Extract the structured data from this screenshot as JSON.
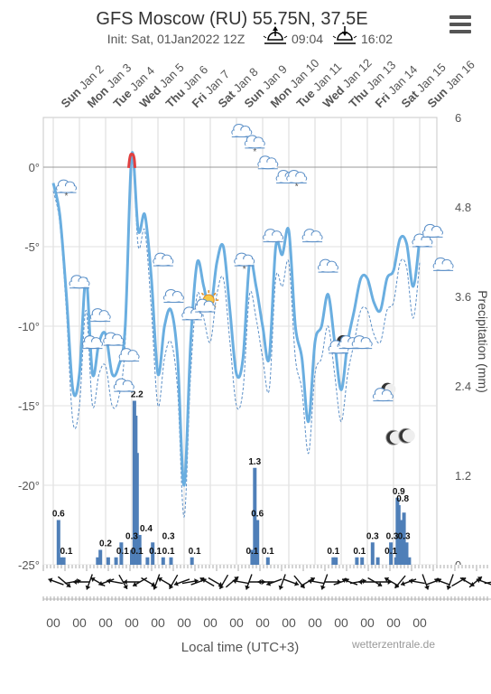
{
  "title": "GFS Moscow (RU) 55.75N, 37.5E",
  "init": "Init: Sat, 01Jan2022 12Z",
  "sunrise": "09:04",
  "sunset": "16:02",
  "menu_icon": "hamburger-menu-icon",
  "source": "wetterzentrale.de",
  "chart_data": {
    "type": "line+bar",
    "xlabel": "Local time (UTC+3)",
    "y2label": "Precipitation (mm)",
    "temp_ticks": [
      "0°",
      "-5°",
      "-10°",
      "-15°",
      "-20°",
      "-25°"
    ],
    "temp_tick_values": [
      0,
      -5,
      -10,
      -15,
      -20,
      -25
    ],
    "temp_ylim": [
      -25,
      3
    ],
    "precip_ticks": [
      "6",
      "4.8",
      "3.6",
      "2.4",
      "1.2",
      "0"
    ],
    "precip_tick_values": [
      6,
      4.8,
      3.6,
      2.4,
      1.2,
      0
    ],
    "precip_ylim": [
      0,
      6
    ],
    "days": [
      {
        "dow": "Sun",
        "date": "Jan 2"
      },
      {
        "dow": "Mon",
        "date": "Jan 3"
      },
      {
        "dow": "Tue",
        "date": "Jan 4"
      },
      {
        "dow": "Wed",
        "date": "Jan 5"
      },
      {
        "dow": "Thu",
        "date": "Jan 6"
      },
      {
        "dow": "Fri",
        "date": "Jan 7"
      },
      {
        "dow": "Sat",
        "date": "Jan 8"
      },
      {
        "dow": "Sun",
        "date": "Jan 9"
      },
      {
        "dow": "Mon",
        "date": "Jan 10"
      },
      {
        "dow": "Tue",
        "date": "Jan 11"
      },
      {
        "dow": "Wed",
        "date": "Jan 12"
      },
      {
        "dow": "Thu",
        "date": "Jan 13"
      },
      {
        "dow": "Fri",
        "date": "Jan 14"
      },
      {
        "dow": "Sat",
        "date": "Jan 15"
      },
      {
        "dow": "Sun",
        "date": "Jan 16"
      }
    ],
    "x_tick_labels": [
      "00",
      "00",
      "00",
      "00",
      "00",
      "00",
      "00",
      "00",
      "00",
      "00",
      "00",
      "00",
      "00",
      "00",
      "00"
    ],
    "temperature": {
      "name": "Temperature",
      "t": [
        0,
        0.25,
        0.5,
        0.75,
        1,
        1.25,
        1.5,
        1.75,
        2,
        2.25,
        2.5,
        2.75,
        3,
        3.25,
        3.5,
        3.75,
        4,
        4.25,
        4.5,
        4.75,
        5,
        5.25,
        5.5,
        5.75,
        6,
        6.25,
        6.5,
        6.75,
        7,
        7.25,
        7.5,
        7.75,
        8,
        8.25,
        8.5,
        8.75,
        9,
        9.25,
        9.5,
        9.75,
        10,
        10.25,
        10.5,
        10.75,
        11,
        11.25,
        11.5,
        11.75,
        12,
        12.25,
        12.5,
        12.75,
        13,
        13.25,
        13.5,
        13.75,
        14
      ],
      "values": [
        -1,
        -3,
        -8,
        -14,
        -13,
        -7,
        -13,
        -11,
        -10.5,
        -13,
        -12.5,
        -10,
        0.8,
        -4,
        -3,
        -7,
        -13,
        -10,
        -9,
        -12,
        -20,
        -11,
        -6,
        -7.5,
        -9,
        -6,
        -5,
        -9,
        -13,
        -12,
        -6,
        -7.5,
        -10,
        -12,
        -5,
        -5.5,
        -4,
        -10,
        -12,
        -16,
        -11,
        -10,
        -8,
        -11,
        -14,
        -11,
        -9,
        -7,
        -7,
        -8.5,
        -9,
        -7,
        -6.5,
        -4.5,
        -4.8,
        -7.5,
        -4.5
      ]
    },
    "dewpoint": {
      "name": "Dew point",
      "values": [
        -1.5,
        -3.5,
        -9,
        -16,
        -15,
        -9,
        -15,
        -13,
        -12.5,
        -15,
        -14.5,
        -11,
        0.2,
        -5,
        -4,
        -9,
        -15,
        -12,
        -11,
        -14,
        -22,
        -13,
        -8,
        -9.5,
        -11,
        -8,
        -7,
        -11,
        -15,
        -14,
        -8,
        -9.5,
        -12,
        -14,
        -7,
        -7.5,
        -6,
        -12,
        -14,
        -18,
        -13,
        -12,
        -10,
        -13,
        -16,
        -13,
        -11,
        -9,
        -9,
        -10.5,
        -11,
        -9,
        -8.5,
        -6,
        -6.3,
        -9.5,
        -6
      ]
    },
    "precipitation": {
      "name": "Precipitation",
      "t": [
        0.2,
        0.3,
        0.4,
        1.7,
        1.8,
        2.1,
        2.4,
        2.6,
        3.0,
        3.1,
        3.15,
        3.2,
        3.3,
        3.6,
        3.8,
        4.2,
        4.5,
        5.3,
        7.6,
        7.7,
        7.8,
        8.2,
        10.7,
        10.8,
        11.6,
        11.8,
        12.2,
        12.4,
        12.9,
        13.1,
        13.15,
        13.2,
        13.3,
        13.4,
        13.5,
        13.6
      ],
      "values": [
        0.6,
        0.1,
        0.1,
        0.1,
        0.2,
        0.1,
        0.1,
        0.3,
        0.2,
        2.2,
        2.0,
        1.5,
        0.4,
        0.1,
        0.3,
        0.1,
        0.1,
        0.1,
        0.2,
        1.3,
        0.6,
        0.1,
        0.1,
        0.1,
        0.1,
        0.1,
        0.3,
        0.1,
        0.3,
        0.1,
        0.9,
        0.8,
        0.6,
        0.7,
        0.3,
        0.1
      ]
    },
    "precip_labels": [
      {
        "t": 0.2,
        "v": 0.6,
        "text": "0.6"
      },
      {
        "t": 0.5,
        "v": 0.1,
        "text": "0.1"
      },
      {
        "t": 2.0,
        "v": 0.2,
        "text": "0.2"
      },
      {
        "t": 2.65,
        "v": 0.1,
        "text": "0.1"
      },
      {
        "t": 3.0,
        "v": 0.3,
        "text": "0.3"
      },
      {
        "t": 3.2,
        "v": 0.1,
        "text": "0.1"
      },
      {
        "t": 3.2,
        "v": 2.2,
        "text": "2.2"
      },
      {
        "t": 3.55,
        "v": 0.4,
        "text": "0.4"
      },
      {
        "t": 3.9,
        "v": 0.1,
        "text": "0.1"
      },
      {
        "t": 4.4,
        "v": 0.3,
        "text": "0.3"
      },
      {
        "t": 4.4,
        "v": 0.1,
        "text": "0.1"
      },
      {
        "t": 5.4,
        "v": 0.1,
        "text": "0.1"
      },
      {
        "t": 7.7,
        "v": 1.3,
        "text": "1.3"
      },
      {
        "t": 7.6,
        "v": 0.1,
        "text": "0.1"
      },
      {
        "t": 7.8,
        "v": 0.6,
        "text": "0.6"
      },
      {
        "t": 8.2,
        "v": 0.1,
        "text": "0.1"
      },
      {
        "t": 10.7,
        "v": 0.1,
        "text": "0.1"
      },
      {
        "t": 11.7,
        "v": 0.1,
        "text": "0.1"
      },
      {
        "t": 12.2,
        "v": 0.3,
        "text": "0.3"
      },
      {
        "t": 12.9,
        "v": 0.1,
        "text": "0.1"
      },
      {
        "t": 12.95,
        "v": 0.3,
        "text": "0.3"
      },
      {
        "t": 13.2,
        "v": 0.9,
        "text": "0.9"
      },
      {
        "t": 13.35,
        "v": 0.8,
        "text": "0.8"
      },
      {
        "t": 13.4,
        "v": 0.3,
        "text": "0.3"
      }
    ],
    "weather_icons": [
      {
        "t": 0.5,
        "temp": -1.2,
        "icon": "cloud-snow-icon"
      },
      {
        "t": 1.0,
        "temp": -7.2,
        "icon": "cloud-icon"
      },
      {
        "t": 1.5,
        "temp": -11.0,
        "icon": "cloud-icon"
      },
      {
        "t": 1.8,
        "temp": -9.3,
        "icon": "cloud-icon"
      },
      {
        "t": 2.3,
        "temp": -10.8,
        "icon": "cloud-icon"
      },
      {
        "t": 2.7,
        "temp": -13.7,
        "icon": "cloud-icon"
      },
      {
        "t": 2.9,
        "temp": -11.8,
        "icon": "cloud-icon"
      },
      {
        "t": 4.2,
        "temp": -5.8,
        "icon": "cloud-icon"
      },
      {
        "t": 4.6,
        "temp": -8.1,
        "icon": "cloud-icon"
      },
      {
        "t": 5.3,
        "temp": -9.2,
        "icon": "cloud-icon"
      },
      {
        "t": 5.8,
        "temp": -8.7,
        "icon": "sun-cloud-icon"
      },
      {
        "t": 7.3,
        "temp": -5.8,
        "icon": "cloud-snow-icon"
      },
      {
        "t": 7.2,
        "temp": 2.3,
        "icon": "cloud-icon"
      },
      {
        "t": 7.7,
        "temp": 1.6,
        "icon": "cloud-snow-icon"
      },
      {
        "t": 8.2,
        "temp": 0.3,
        "icon": "cloud-icon"
      },
      {
        "t": 8.4,
        "temp": -4.3,
        "icon": "cloud-icon"
      },
      {
        "t": 8.9,
        "temp": -0.6,
        "icon": "cloud-icon"
      },
      {
        "t": 9.3,
        "temp": -0.6,
        "icon": "cloud-snow-icon"
      },
      {
        "t": 9.9,
        "temp": -4.3,
        "icon": "cloud-icon"
      },
      {
        "t": 10.5,
        "temp": -6.2,
        "icon": "cloud-icon"
      },
      {
        "t": 10.9,
        "temp": -11.3,
        "icon": "cloud-moon-icon"
      },
      {
        "t": 11.3,
        "temp": -11.0,
        "icon": "cloud-icon"
      },
      {
        "t": 11.8,
        "temp": -11.0,
        "icon": "cloud-icon"
      },
      {
        "t": 12.6,
        "temp": -14.3,
        "icon": "cloud-moon-icon"
      },
      {
        "t": 13.2,
        "temp": -17.0,
        "icon": "moon-icon"
      },
      {
        "t": 14.1,
        "temp": -4.6,
        "icon": "cloud-icon"
      },
      {
        "t": 14.5,
        "temp": -4.0,
        "icon": "cloud-icon"
      },
      {
        "t": 14.9,
        "temp": -6.1,
        "icon": "cloud-icon"
      }
    ],
    "wind_dirs_deg": [
      290,
      130,
      80,
      270,
      200,
      300,
      250,
      280,
      150,
      270,
      240,
      120,
      200,
      300,
      210,
      250,
      80,
      70,
      300,
      120,
      210,
      50,
      280,
      200,
      90,
      270,
      250,
      200,
      110,
      140,
      60,
      280,
      200,
      90,
      70,
      290,
      80,
      270,
      120,
      90,
      300,
      220,
      250,
      280,
      160,
      70,
      290,
      200,
      60,
      120,
      50,
      290,
      80
    ]
  }
}
